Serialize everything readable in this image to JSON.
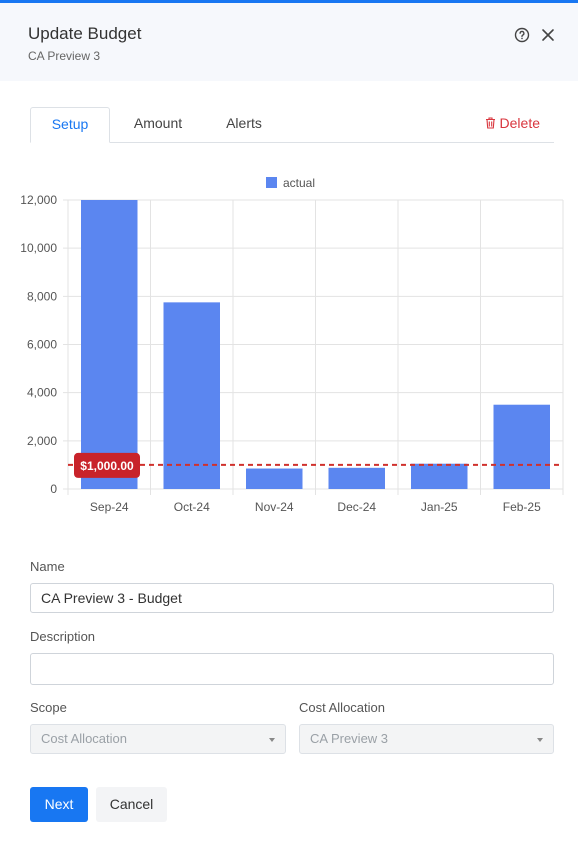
{
  "dialog": {
    "title": "Update Budget",
    "subtitle": "CA Preview 3"
  },
  "tabs": [
    {
      "label": "Setup",
      "active": true
    },
    {
      "label": "Amount",
      "active": false
    },
    {
      "label": "Alerts",
      "active": false
    }
  ],
  "delete_label": "Delete",
  "colors": {
    "accent": "#1877f2",
    "bar": "#5b86f0",
    "threshold": "#d0312d",
    "danger": "#d9363e"
  },
  "icons": {
    "help": "help-circle-icon",
    "close": "close-icon",
    "delete": "trash-icon"
  },
  "chart_data": {
    "type": "bar",
    "categories": [
      "Sep-24",
      "Oct-24",
      "Nov-24",
      "Dec-24",
      "Jan-25",
      "Feb-25"
    ],
    "series": [
      {
        "name": "actual",
        "values": [
          12000,
          7750,
          850,
          880,
          1050,
          3500
        ]
      }
    ],
    "y_ticks": [
      "0",
      "2,000",
      "4,000",
      "6,000",
      "8,000",
      "10,000",
      "12,000"
    ],
    "ylim": [
      0,
      12000
    ],
    "threshold": {
      "value": 1000,
      "label": "$1,000.00"
    },
    "grid": true,
    "legend_position": "top"
  },
  "form": {
    "name_label": "Name",
    "name_value": "CA Preview 3 - Budget",
    "description_label": "Description",
    "description_value": "",
    "scope_label": "Scope",
    "scope_value": "Cost Allocation",
    "cost_allocation_label": "Cost Allocation",
    "cost_allocation_value": "CA Preview 3"
  },
  "buttons": {
    "next": "Next",
    "cancel": "Cancel"
  }
}
